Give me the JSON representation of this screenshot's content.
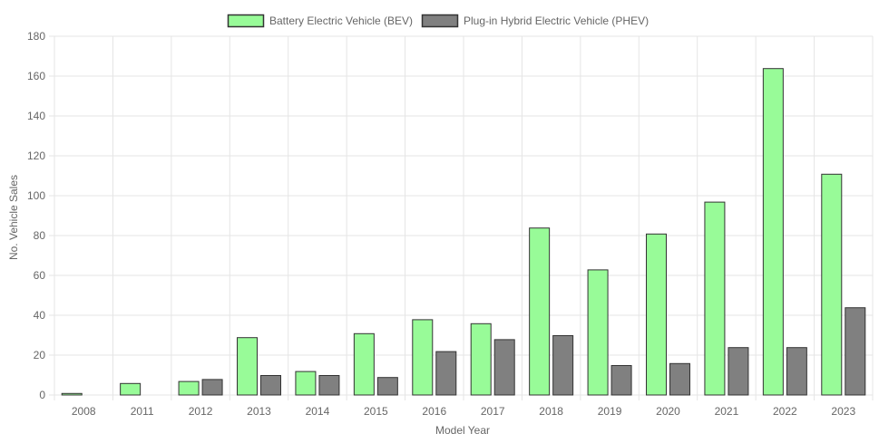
{
  "chart_data": {
    "type": "bar",
    "xlabel": "Model Year",
    "ylabel": "No. Vehicle Sales",
    "ylim": [
      0,
      180
    ],
    "ytick_step": 20,
    "grid": true,
    "legend_position": "top-center",
    "categories": [
      "2008",
      "2011",
      "2012",
      "2013",
      "2014",
      "2015",
      "2016",
      "2017",
      "2018",
      "2019",
      "2020",
      "2021",
      "2022",
      "2023"
    ],
    "series": [
      {
        "name": "Battery Electric Vehicle (BEV)",
        "color": "#98fb98",
        "values": [
          1,
          6,
          7,
          29,
          12,
          31,
          38,
          36,
          84,
          63,
          81,
          97,
          164,
          111
        ]
      },
      {
        "name": "Plug-in Hybrid Electric Vehicle (PHEV)",
        "color": "#808080",
        "values": [
          0,
          0,
          8,
          10,
          10,
          9,
          22,
          28,
          30,
          15,
          16,
          24,
          24,
          44
        ]
      }
    ]
  },
  "colors": {
    "bar_border": "#333333",
    "grid": "#e5e5e5",
    "text": "#666666"
  }
}
